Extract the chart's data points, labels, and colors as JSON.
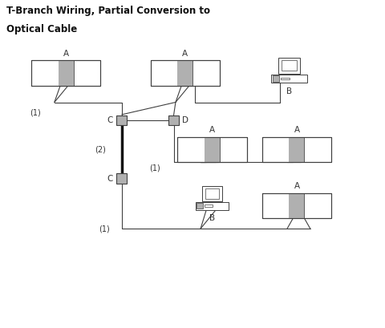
{
  "title_line1": "T-Branch Wiring, Partial Conversion to",
  "title_line2": "Optical Cable",
  "bg_color": "#ffffff",
  "box_outline": "#404040",
  "box_fill": "#ffffff",
  "gray_fill": "#b0b0b0",
  "dark_line": "#111111",
  "wire_color": "#404040",
  "label_color": "#333333",
  "xlim": [
    0,
    10
  ],
  "ylim": [
    0,
    9
  ]
}
